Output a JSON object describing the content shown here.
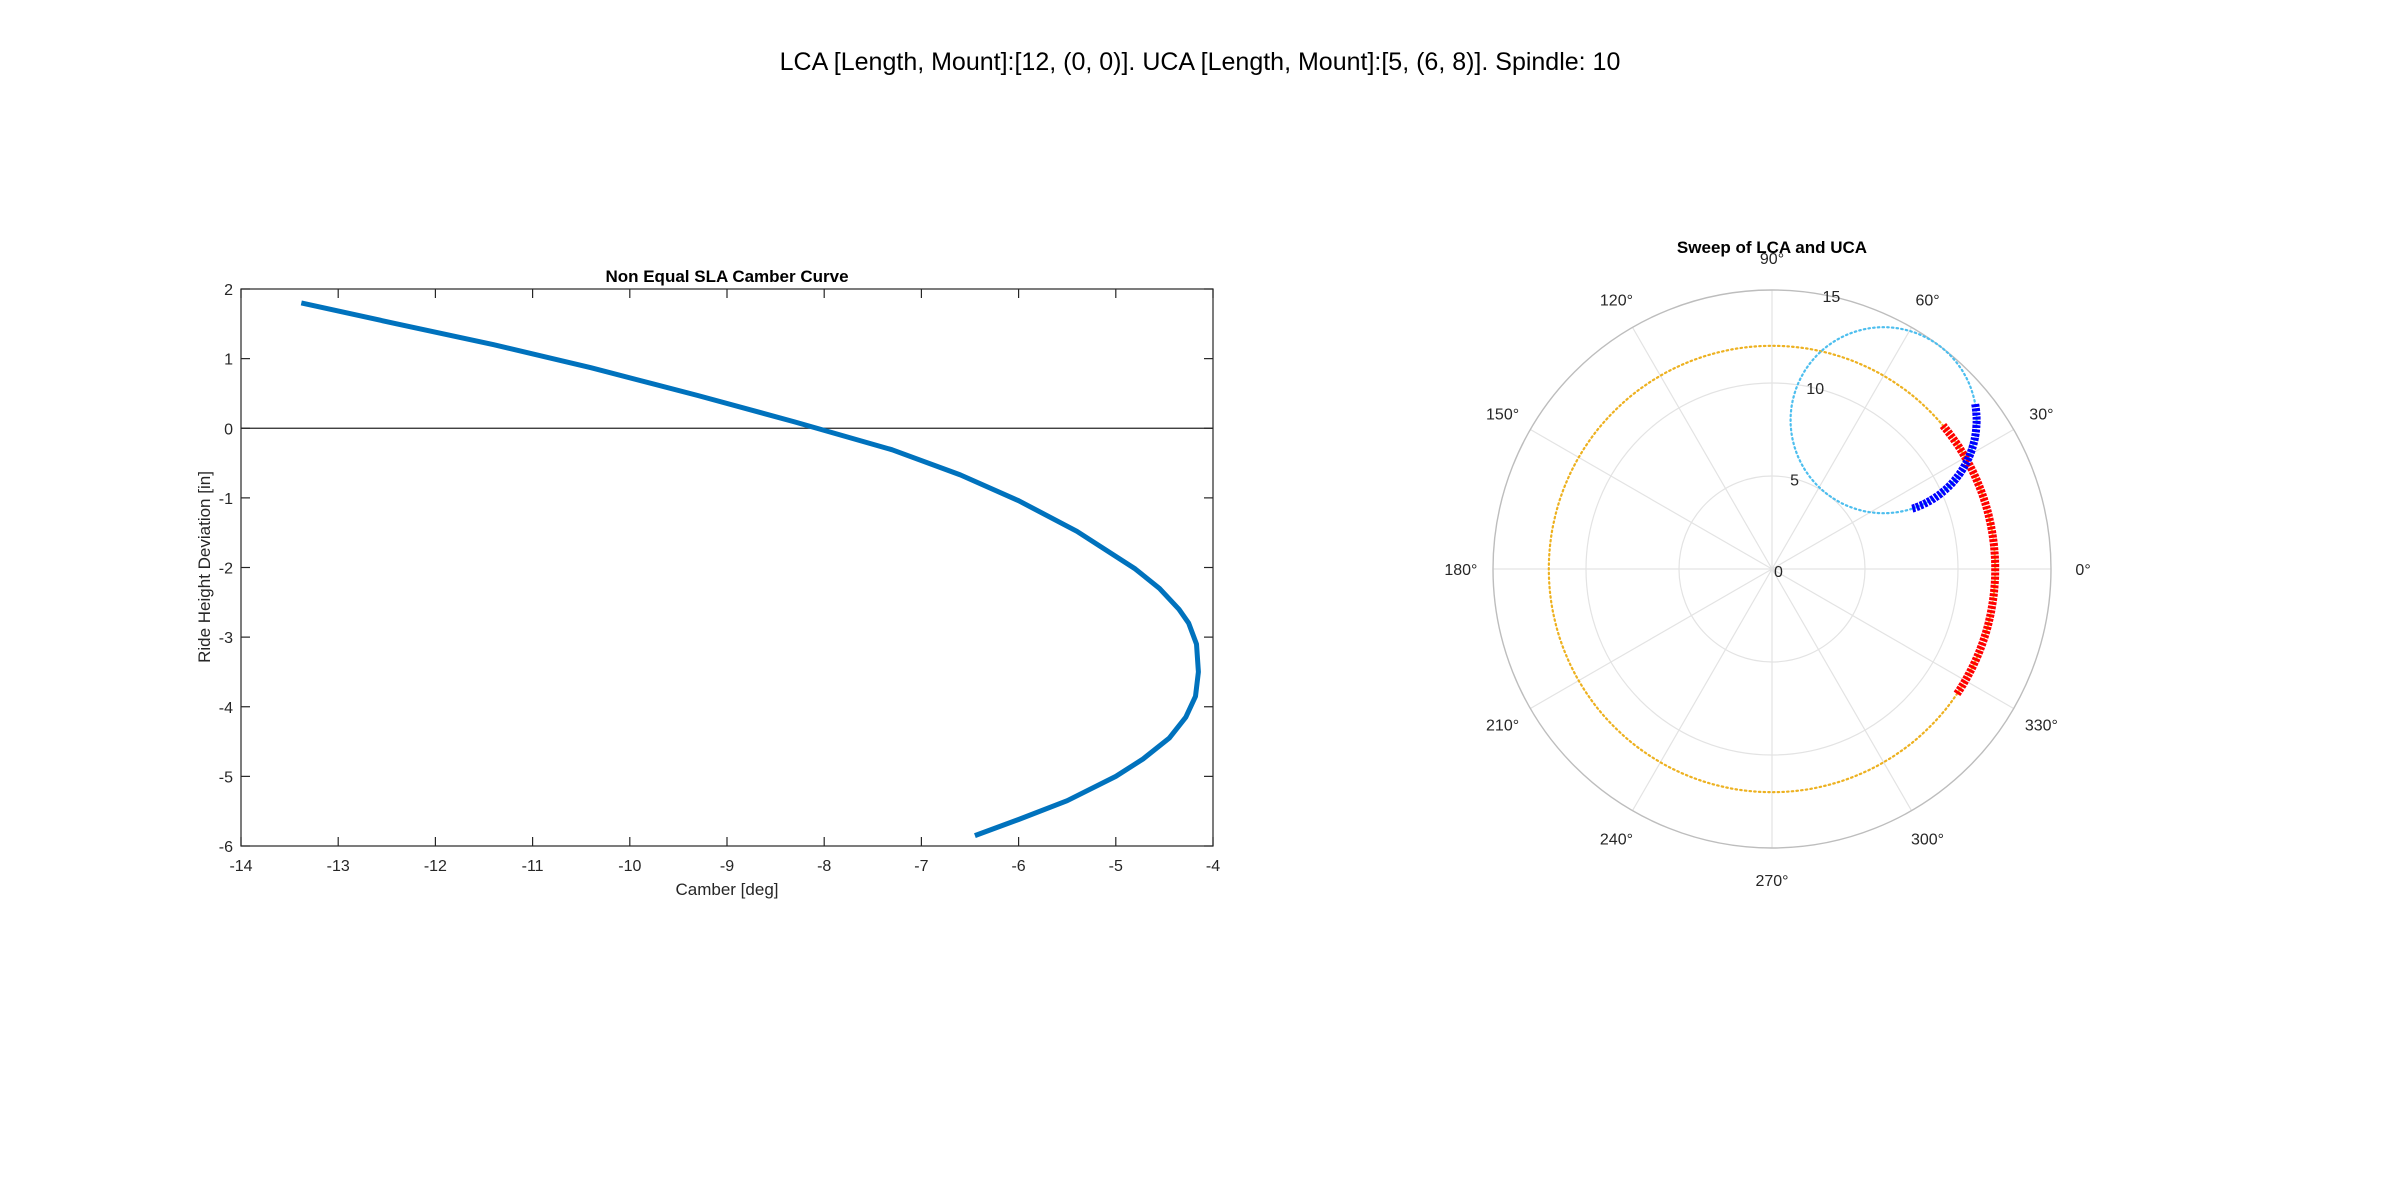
{
  "figure": {
    "suptitle": "LCA [Length, Mount]:[12, (0, 0)]. UCA [Length, Mount]:[5, (6, 8)]. Spindle: 10"
  },
  "chart_data": [
    {
      "type": "line",
      "title": "Non Equal SLA Camber Curve",
      "xlabel": "Camber [deg]",
      "ylabel": "Ride Height Deviation [in]",
      "xlim": [
        -14,
        -4
      ],
      "ylim": [
        -6,
        2
      ],
      "xticks": [
        -14,
        -13,
        -12,
        -11,
        -10,
        -9,
        -8,
        -7,
        -6,
        -5,
        -4
      ],
      "yticks": [
        -6,
        -5,
        -4,
        -3,
        -2,
        -1,
        0,
        1,
        2
      ],
      "grid": false,
      "reference_line_y": 0,
      "color": "#0072BD",
      "x": [
        -13.38,
        -12.4,
        -11.4,
        -10.4,
        -9.3,
        -8.3,
        -7.9,
        -7.3,
        -6.6,
        -6.0,
        -5.4,
        -4.8,
        -4.55,
        -4.35,
        -4.25,
        -4.17,
        -4.15,
        -4.18,
        -4.28,
        -4.45,
        -4.72,
        -5.0,
        -5.5,
        -6.0,
        -6.45
      ],
      "y": [
        1.8,
        1.5,
        1.2,
        0.87,
        0.47,
        0.09,
        -0.07,
        -0.31,
        -0.67,
        -1.04,
        -1.48,
        -2.02,
        -2.3,
        -2.6,
        -2.8,
        -3.1,
        -3.5,
        -3.85,
        -4.15,
        -4.45,
        -4.75,
        -5.0,
        -5.35,
        -5.62,
        -5.85
      ]
    },
    {
      "type": "polar",
      "title": "Sweep of LCA and UCA",
      "rlim": [
        0,
        15
      ],
      "rticks": [
        0,
        5,
        10,
        15
      ],
      "theta_ticks": [
        0,
        30,
        60,
        90,
        120,
        150,
        180,
        210,
        240,
        270,
        300,
        330
      ],
      "theta_tick_labels": [
        "0°",
        "30°",
        "60°",
        "90°",
        "120°",
        "150°",
        "180°",
        "210°",
        "240°",
        "270°",
        "300°",
        "330°"
      ],
      "grid": true,
      "series": [
        {
          "style": "dotted",
          "color": "#EDB120",
          "circle_center": [
            0,
            0
          ],
          "circle_radius": 12
        },
        {
          "style": "dotted",
          "color": "#4DBEEE",
          "circle_center": [
            6,
            8
          ],
          "circle_radius": 5
        },
        {
          "style": "thick-marker",
          "color": "#FF0000",
          "circle_center": [
            0,
            0
          ],
          "circle_radius": 12,
          "theta_start": -34,
          "theta_end": 40
        },
        {
          "style": "thick-marker",
          "color": "#0000FF",
          "circle_center": [
            6,
            8
          ],
          "circle_radius": 5,
          "theta_start": -72,
          "theta_end": 10
        }
      ]
    }
  ]
}
